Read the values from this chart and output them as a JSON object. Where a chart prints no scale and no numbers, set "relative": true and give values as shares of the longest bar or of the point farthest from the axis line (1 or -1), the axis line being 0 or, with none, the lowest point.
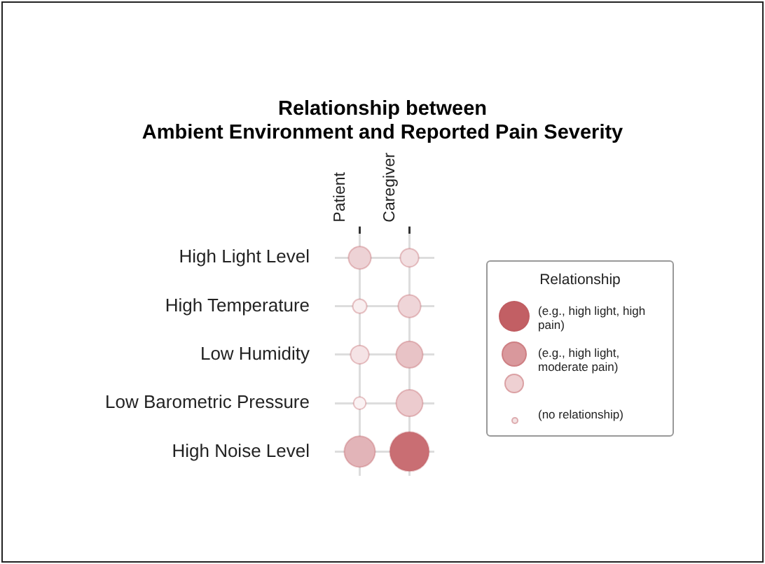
{
  "chart_data": {
    "type": "bubble",
    "title": "Relationship between\nAmbient Environment and Reported Pain Severity",
    "categories": [
      "Patient",
      "Caregiver"
    ],
    "relative": true,
    "y_categories": [
      "High Light Level",
      "High Temperature",
      "Low Humidity",
      "Low Barometric Pressure",
      "High Noise Level"
    ],
    "series": [
      {
        "x": [
          "Patient",
          "Caregiver",
          "Patient",
          "Caregiver",
          "Patient",
          "Caregiver",
          "Patient",
          "Caregiver",
          "Patient",
          "Caregiver"
        ],
        "values": [
          1,
          1,
          0.75,
          0.75,
          0.5,
          0.5,
          0.25,
          0.25,
          0,
          0
        ],
        "sizes": [
          0.33,
          0.22,
          0.13,
          0.33,
          0.22,
          0.46,
          0.1,
          0.46,
          0.62,
          1
        ],
        "colors": [
          "#edd2d5",
          "#f2dfe1",
          "#f8eeef",
          "#efd5d8",
          "#f5e3e5",
          "#e8c3c6",
          "#faf2f3",
          "#eccbce",
          "#e2b4b8",
          "#c96e73"
        ]
      }
    ],
    "grid": true,
    "legend_title": "Relationship",
    "annotations": [
      "(e.g., high light, high pain)",
      "(e.g., high light, moderate pain)",
      "(no relationship)"
    ]
  }
}
